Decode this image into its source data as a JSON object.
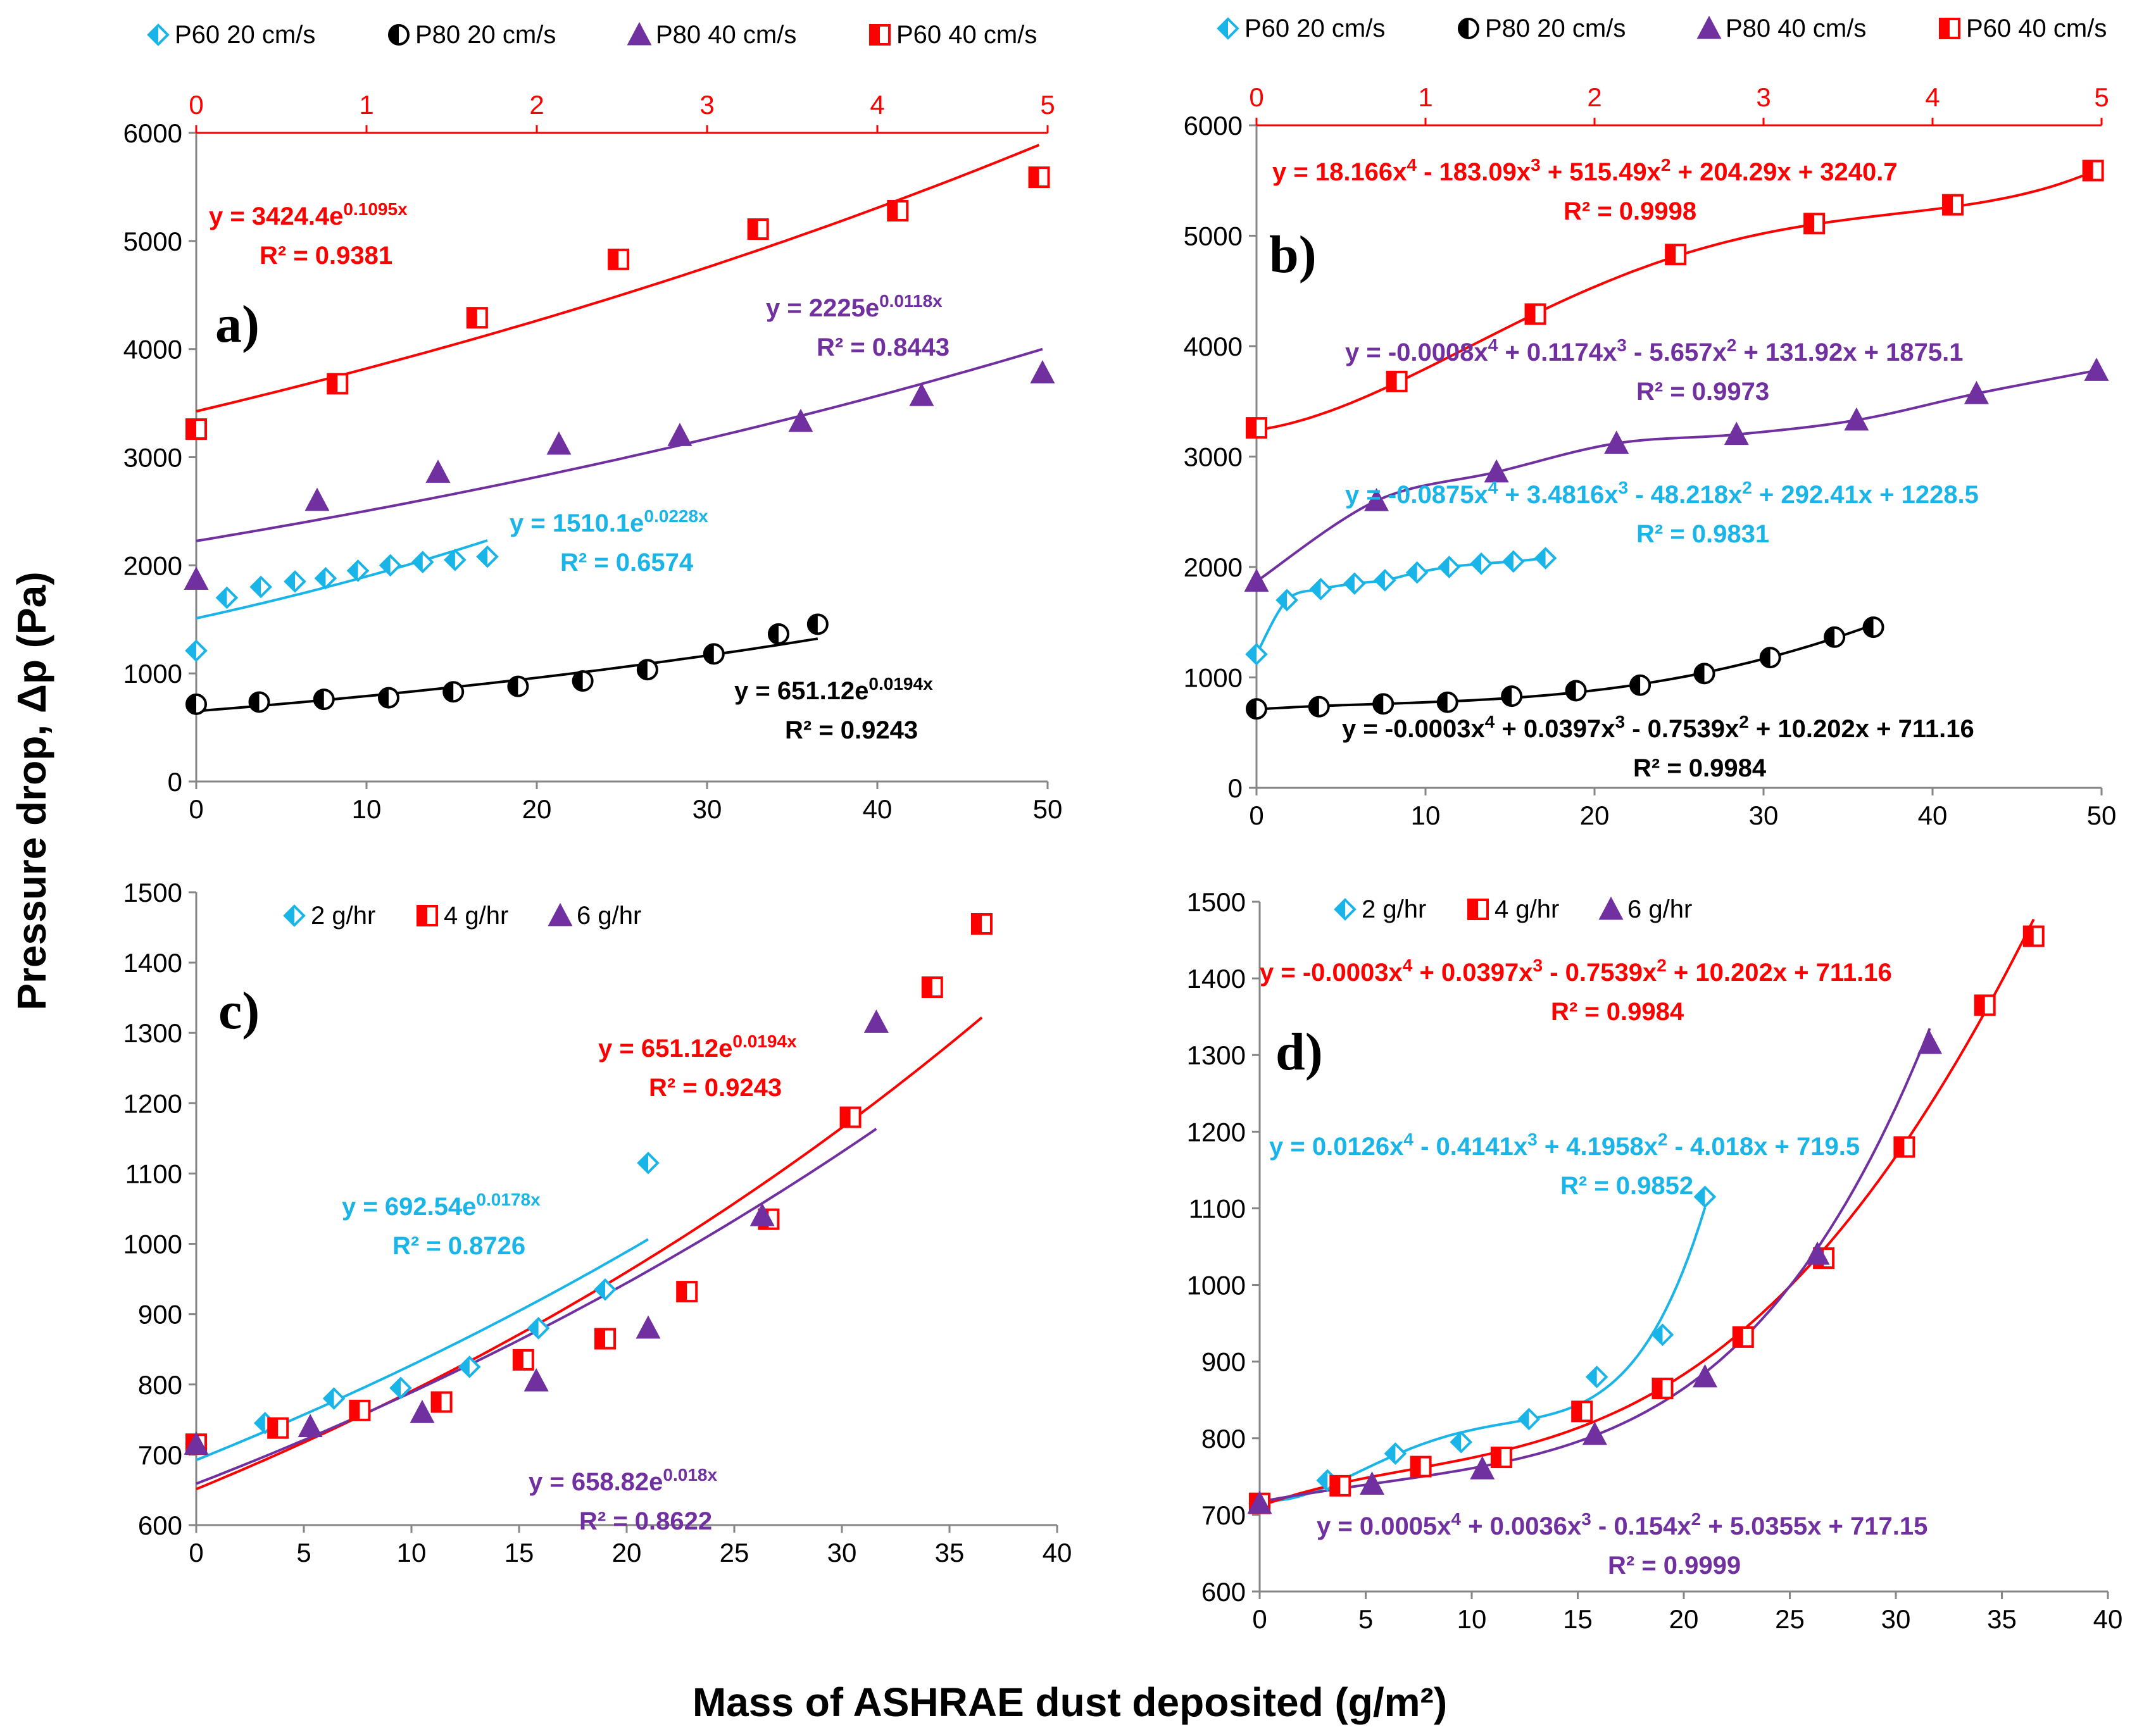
{
  "colors": {
    "cyan": "#19b4e8",
    "black": "#000000",
    "purple": "#7030a0",
    "red": "#ff0000",
    "axis": "#868686"
  },
  "axis_titles": {
    "y": "Pressure drop, Δp (Pa)",
    "x": "Mass of ASHRAE dust deposited (g/m²)"
  },
  "chart_data": [
    {
      "id": "a",
      "type": "scatter",
      "panel_label": "a)",
      "xlim": [
        0,
        50
      ],
      "xticks": [
        0,
        10,
        20,
        30,
        40,
        50
      ],
      "ylim": [
        0,
        6000
      ],
      "yticks": [
        0,
        1000,
        2000,
        3000,
        4000,
        5000,
        6000
      ],
      "x2": {
        "lim": [
          0,
          5
        ],
        "ticks": [
          0,
          1,
          2,
          3,
          4,
          5
        ],
        "color": "red"
      },
      "legend": [
        "P60 20 cm/s",
        "P80 20 cm/s",
        "P80 40 cm/s",
        "P60 40 cm/s"
      ],
      "series": [
        {
          "name": "P60 20 cm/s",
          "color": "cyan",
          "marker": "diamond",
          "x": [
            0,
            1.8,
            3.8,
            5.8,
            7.6,
            9.5,
            11.4,
            13.3,
            15.2,
            17.1
          ],
          "y": [
            1210,
            1700,
            1800,
            1850,
            1880,
            1950,
            2000,
            2030,
            2050,
            2080
          ],
          "fit": {
            "kind": "exp",
            "a": 1510.1,
            "b": 0.0228,
            "range": [
              0,
              17.1
            ]
          }
        },
        {
          "name": "P80 20 cm/s",
          "color": "black",
          "marker": "circle",
          "x": [
            0,
            3.7,
            7.5,
            11.3,
            15.1,
            18.9,
            22.7,
            26.5,
            30.4,
            34.2,
            36.5
          ],
          "y": [
            715,
            735,
            760,
            775,
            830,
            880,
            930,
            1035,
            1180,
            1365,
            1455
          ],
          "fit": {
            "kind": "exp",
            "a": 651.12,
            "b": 0.0194,
            "range": [
              0,
              36.5
            ]
          }
        },
        {
          "name": "P80 40 cm/s",
          "color": "purple",
          "marker": "triangle",
          "x": [
            0,
            7.1,
            14.2,
            21.3,
            28.4,
            35.5,
            42.6,
            49.7
          ],
          "y": [
            1870,
            2600,
            2860,
            3120,
            3200,
            3330,
            3570,
            3780
          ],
          "fit": {
            "kind": "exp",
            "a": 2225,
            "b": 0.0118,
            "range": [
              0,
              49.7
            ]
          }
        },
        {
          "name": "P60 40 cm/s",
          "color": "red",
          "marker": "square",
          "x": [
            0,
            8.3,
            16.5,
            24.8,
            33.0,
            41.2,
            49.5
          ],
          "y": [
            3260,
            3680,
            4290,
            4830,
            5110,
            5280,
            5590
          ],
          "fit": {
            "kind": "exp",
            "a": 3424.4,
            "b": 0.1095,
            "range": [
              0,
              49.5
            ],
            "scale": 10
          }
        }
      ],
      "equations": [
        {
          "color": "red",
          "base": "y = 3424.4e",
          "sup": "0.1095x",
          "r2": "R² = 0.9381"
        },
        {
          "color": "purple",
          "base": "y = 2225e",
          "sup": "0.0118x",
          "r2": "R² = 0.8443"
        },
        {
          "color": "cyan",
          "base": "y = 1510.1e",
          "sup": "0.0228x",
          "r2": "R² = 0.6574"
        },
        {
          "color": "black",
          "base": "y = 651.12e",
          "sup": "0.0194x",
          "r2": "R² = 0.9243"
        }
      ]
    },
    {
      "id": "b",
      "type": "scatter",
      "panel_label": "b)",
      "xlim": [
        0,
        50
      ],
      "xticks": [
        0,
        10,
        20,
        30,
        40,
        50
      ],
      "ylim": [
        0,
        6000
      ],
      "yticks": [
        0,
        1000,
        2000,
        3000,
        4000,
        5000,
        6000
      ],
      "x2": {
        "lim": [
          0,
          5
        ],
        "ticks": [
          0,
          1,
          2,
          3,
          4,
          5
        ],
        "color": "red"
      },
      "legend": [
        "P60 20 cm/s",
        "P80 20 cm/s",
        "P80 40 cm/s",
        "P60 40 cm/s"
      ],
      "series": [
        {
          "name": "P60 20 cm/s",
          "color": "cyan",
          "marker": "diamond",
          "x": [
            0,
            1.8,
            3.8,
            5.8,
            7.6,
            9.5,
            11.4,
            13.3,
            15.2,
            17.1
          ],
          "y": [
            1210,
            1700,
            1800,
            1850,
            1880,
            1950,
            2000,
            2030,
            2050,
            2080
          ],
          "fit": {
            "kind": "smooth",
            "range": [
              0,
              17.1
            ]
          }
        },
        {
          "name": "P80 20 cm/s",
          "color": "black",
          "marker": "circle",
          "x": [
            0,
            3.7,
            7.5,
            11.3,
            15.1,
            18.9,
            22.7,
            26.5,
            30.4,
            34.2,
            36.5
          ],
          "y": [
            715,
            735,
            760,
            775,
            830,
            880,
            930,
            1035,
            1180,
            1365,
            1455
          ],
          "fit": {
            "kind": "poly",
            "coef": [
              711.16,
              10.202,
              -0.7539,
              0.0397,
              -0.0003
            ],
            "range": [
              0,
              36.5
            ]
          }
        },
        {
          "name": "P80 40 cm/s",
          "color": "purple",
          "marker": "triangle",
          "x": [
            0,
            7.1,
            14.2,
            21.3,
            28.4,
            35.5,
            42.6,
            49.7
          ],
          "y": [
            1870,
            2600,
            2860,
            3120,
            3200,
            3330,
            3570,
            3780
          ],
          "fit": {
            "kind": "smooth",
            "range": [
              0,
              49.7
            ]
          }
        },
        {
          "name": "P60 40 cm/s",
          "color": "red",
          "marker": "square",
          "x": [
            0,
            8.3,
            16.5,
            24.8,
            33.0,
            41.2,
            49.5
          ],
          "y": [
            3260,
            3680,
            4290,
            4830,
            5110,
            5280,
            5590
          ],
          "fit": {
            "kind": "poly",
            "coef": [
              3240.7,
              204.29,
              515.49,
              -183.09,
              18.166
            ],
            "range": [
              0,
              49.5
            ],
            "scale": 10
          }
        }
      ],
      "equations": [
        {
          "color": "red",
          "poly": [
            "y = 18.166x",
            "4",
            " - 183.09x",
            "3",
            " + 515.49x",
            "2",
            " + 204.29x + 3240.7"
          ],
          "r2": "R² = 0.9998"
        },
        {
          "color": "purple",
          "poly": [
            "y = -0.0008x",
            "4",
            " + 0.1174x",
            "3",
            " - 5.657x",
            "2",
            " + 131.92x + 1875.1"
          ],
          "r2": "R² = 0.9973"
        },
        {
          "color": "cyan",
          "poly": [
            "y = -0.0875x",
            "4",
            " + 3.4816x",
            "3",
            " - 48.218x",
            "2",
            " + 292.41x + 1228.5"
          ],
          "r2": "R² = 0.9831"
        },
        {
          "color": "black",
          "poly": [
            "y = -0.0003x",
            "4",
            " + 0.0397x",
            "3",
            " - 0.7539x",
            "2",
            " + 10.202x + 711.16"
          ],
          "r2": "R² = 0.9984"
        }
      ]
    },
    {
      "id": "c",
      "type": "scatter",
      "panel_label": "c)",
      "xlim": [
        0,
        40
      ],
      "xticks": [
        0,
        5,
        10,
        15,
        20,
        25,
        30,
        35,
        40
      ],
      "ylim": [
        600,
        1500
      ],
      "yticks": [
        600,
        700,
        800,
        900,
        1000,
        1100,
        1200,
        1300,
        1400,
        1500
      ],
      "legend": [
        "2 g/hr",
        "4 g/hr",
        "6 g/hr"
      ],
      "series": [
        {
          "name": "2 g/hr",
          "color": "cyan",
          "marker": "diamond",
          "x": [
            0,
            3.2,
            6.4,
            9.5,
            12.7,
            15.9,
            19.0,
            21.0
          ],
          "y": [
            715,
            745,
            780,
            795,
            825,
            880,
            935,
            1115
          ],
          "fit": {
            "kind": "exp",
            "a": 692.54,
            "b": 0.0178,
            "range": [
              0,
              21.0
            ]
          }
        },
        {
          "name": "4 g/hr",
          "color": "red",
          "marker": "square",
          "x": [
            0,
            3.8,
            7.6,
            11.4,
            15.2,
            19.0,
            22.8,
            26.6,
            30.4,
            34.2,
            36.5
          ],
          "y": [
            715,
            738,
            763,
            775,
            835,
            865,
            932,
            1035,
            1180,
            1365,
            1455
          ],
          "fit": {
            "kind": "exp",
            "a": 651.12,
            "b": 0.0194,
            "range": [
              0,
              36.5
            ]
          }
        },
        {
          "name": "6 g/hr",
          "color": "purple",
          "marker": "triangle",
          "x": [
            0,
            5.3,
            10.5,
            15.8,
            21.0,
            26.3,
            31.6
          ],
          "y": [
            715,
            740,
            760,
            805,
            880,
            1040,
            1315
          ],
          "fit": {
            "kind": "exp",
            "a": 658.82,
            "b": 0.018,
            "range": [
              0,
              31.6
            ]
          }
        }
      ],
      "equations": [
        {
          "color": "red",
          "base": "y = 651.12e",
          "sup": "0.0194x",
          "r2": "R² = 0.9243"
        },
        {
          "color": "cyan",
          "base": "y = 692.54e",
          "sup": "0.0178x",
          "r2": "R² = 0.8726"
        },
        {
          "color": "purple",
          "base": "y = 658.82e",
          "sup": "0.018x",
          "r2": "R² = 0.8622"
        }
      ]
    },
    {
      "id": "d",
      "type": "scatter",
      "panel_label": "d)",
      "xlim": [
        0,
        40
      ],
      "xticks": [
        0,
        5,
        10,
        15,
        20,
        25,
        30,
        35,
        40
      ],
      "ylim": [
        600,
        1500
      ],
      "yticks": [
        600,
        700,
        800,
        900,
        1000,
        1100,
        1200,
        1300,
        1400,
        1500
      ],
      "legend": [
        "2 g/hr",
        "4 g/hr",
        "6 g/hr"
      ],
      "series": [
        {
          "name": "2 g/hr",
          "color": "cyan",
          "marker": "diamond",
          "x": [
            0,
            3.2,
            6.4,
            9.5,
            12.7,
            15.9,
            19.0,
            21.0
          ],
          "y": [
            715,
            745,
            780,
            795,
            825,
            880,
            935,
            1115
          ],
          "fit": {
            "kind": "poly",
            "coef": [
              719.5,
              -4.018,
              4.1958,
              -0.4141,
              0.0126
            ],
            "range": [
              0,
              21.0
            ]
          }
        },
        {
          "name": "4 g/hr",
          "color": "red",
          "marker": "square",
          "x": [
            0,
            3.8,
            7.6,
            11.4,
            15.2,
            19.0,
            22.8,
            26.6,
            30.4,
            34.2,
            36.5
          ],
          "y": [
            715,
            738,
            763,
            775,
            835,
            865,
            932,
            1035,
            1180,
            1365,
            1455
          ],
          "fit": {
            "kind": "poly",
            "coef": [
              711.16,
              10.202,
              -0.7539,
              0.0397,
              -0.0003
            ],
            "range": [
              0,
              36.5
            ]
          }
        },
        {
          "name": "6 g/hr",
          "color": "purple",
          "marker": "triangle",
          "x": [
            0,
            5.3,
            10.5,
            15.8,
            21.0,
            26.3,
            31.6
          ],
          "y": [
            715,
            740,
            760,
            805,
            880,
            1040,
            1315
          ],
          "fit": {
            "kind": "poly",
            "coef": [
              717.15,
              5.0355,
              -0.154,
              0.0036,
              0.0005
            ],
            "range": [
              0,
              31.6
            ]
          }
        }
      ],
      "equations": [
        {
          "color": "red",
          "poly": [
            "y = -0.0003x",
            "4",
            " + 0.0397x",
            "3",
            " - 0.7539x",
            "2",
            " + 10.202x + 711.16"
          ],
          "r2": "R² = 0.9984"
        },
        {
          "color": "cyan",
          "poly": [
            "y = 0.0126x",
            "4",
            " - 0.4141x",
            "3",
            " + 4.1958x",
            "2",
            " - 4.018x + 719.5"
          ],
          "r2": "R² = 0.9852"
        },
        {
          "color": "purple",
          "poly": [
            "y = 0.0005x",
            "4",
            " + 0.0036x",
            "3",
            " - 0.154x",
            "2",
            " + 5.0355x + 717.15"
          ],
          "r2": "R² = 0.9999"
        }
      ]
    }
  ]
}
